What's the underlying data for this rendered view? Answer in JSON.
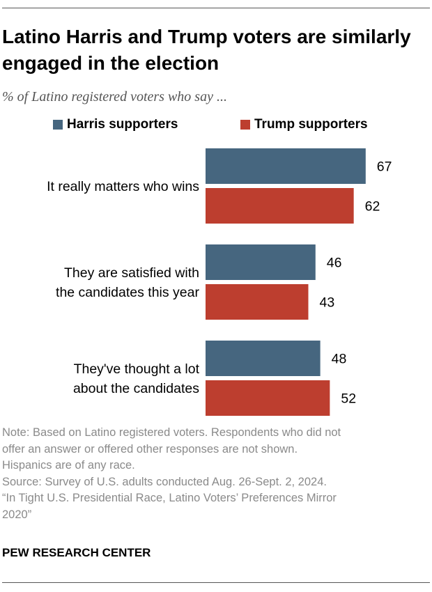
{
  "title": "Latino Harris and Trump voters are similarly engaged in the election",
  "subtitle": "% of Latino registered voters who say ...",
  "legend": [
    {
      "label": "Harris supporters",
      "color": "#46667f"
    },
    {
      "label": "Trump supporters",
      "color": "#bd3e2f"
    }
  ],
  "chart_data": {
    "type": "bar",
    "orientation": "horizontal",
    "categories": [
      [
        "It really matters who wins"
      ],
      [
        "They are satisfied with",
        "the candidates this year"
      ],
      [
        "They've thought a lot",
        "about the candidates"
      ]
    ],
    "series": [
      {
        "name": "Harris supporters",
        "color": "#46667f",
        "values": [
          67,
          46,
          48
        ]
      },
      {
        "name": "Trump supporters",
        "color": "#bd3e2f",
        "values": [
          62,
          43,
          52
        ]
      }
    ],
    "xlim": [
      0,
      100
    ],
    "grid": false,
    "legend_position": "top"
  },
  "note_lines": [
    "Note: Based on Latino registered voters. Respondents who did not",
    "offer an answer or offered other responses are not shown.",
    "Hispanics are of any race.",
    "Source: Survey of U.S. adults conducted Aug. 26-Sept. 2, 2024.",
    "“In Tight U.S. Presidential Race, Latino Voters’ Preferences Mirror",
    "2020”"
  ],
  "footer": "PEW RESEARCH CENTER"
}
